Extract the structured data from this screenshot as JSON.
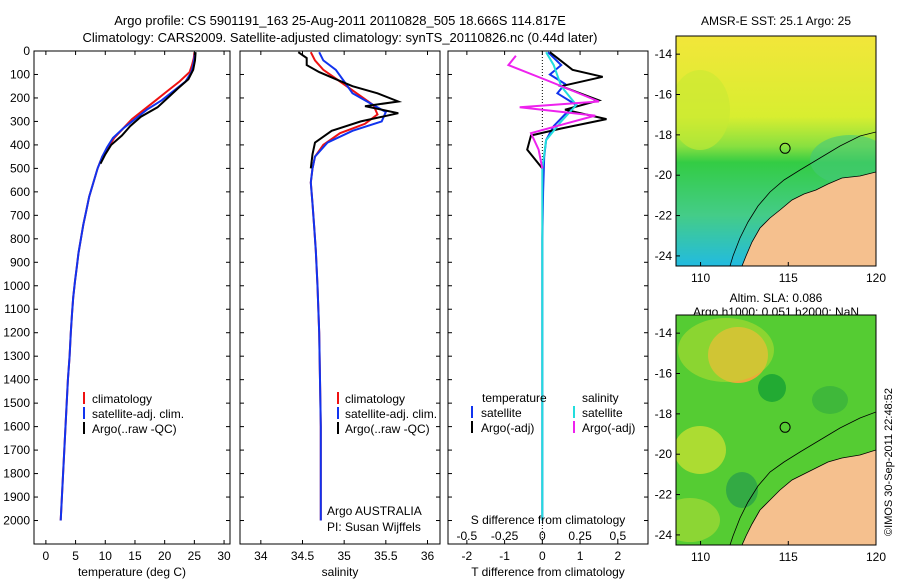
{
  "title_line1": "Argo profile: CS 5901191_163 25-Aug-2011 20110828_505 18.666S 114.817E",
  "title_line2": "Climatology: CARS2009. Satellite-adjusted climatology: synTS_20110826.nc (0.44d later)",
  "depth_ticks": [
    0,
    100,
    200,
    300,
    400,
    500,
    600,
    700,
    800,
    900,
    1000,
    1100,
    1200,
    1300,
    1400,
    1500,
    1600,
    1700,
    1800,
    1900,
    2000
  ],
  "colors": {
    "clim": "#ee1111",
    "sat": "#1133ee",
    "argo": "#000000",
    "cyan": "#22dddd",
    "magenta": "#ee22ee",
    "land": "#f5c08e"
  },
  "chart_data": [
    {
      "type": "line",
      "id": "temperature",
      "xlabel": "temperature (deg C)",
      "xlim": [
        -2,
        31
      ],
      "ylim": [
        2100,
        0
      ],
      "xticks": [
        0,
        5,
        10,
        15,
        20,
        25,
        30
      ],
      "legend": [
        "climatology",
        "satellite-adj. clim.",
        "Argo(..raw -QC)"
      ],
      "series": [
        {
          "name": "climatology",
          "color": "clim",
          "points": [
            [
              25.0,
              5
            ],
            [
              24.9,
              30
            ],
            [
              24.6,
              60
            ],
            [
              24.2,
              90
            ],
            [
              22.5,
              130
            ],
            [
              20.5,
              170
            ],
            [
              18.5,
              210
            ],
            [
              16.5,
              250
            ],
            [
              14.5,
              290
            ],
            [
              13.0,
              330
            ],
            [
              11.5,
              370
            ],
            [
              10.5,
              410
            ],
            [
              9.5,
              450
            ],
            [
              8.7,
              500
            ],
            [
              8.0,
              560
            ],
            [
              7.3,
              620
            ],
            [
              6.8,
              680
            ],
            [
              6.3,
              740
            ],
            [
              5.9,
              800
            ],
            [
              5.5,
              860
            ],
            [
              5.2,
              920
            ],
            [
              4.9,
              980
            ],
            [
              4.6,
              1050
            ],
            [
              4.4,
              1120
            ],
            [
              4.2,
              1200
            ],
            [
              4.0,
              1300
            ],
            [
              3.7,
              1400
            ],
            [
              3.5,
              1500
            ],
            [
              3.3,
              1600
            ],
            [
              3.1,
              1700
            ],
            [
              2.9,
              1800
            ],
            [
              2.7,
              1900
            ],
            [
              2.5,
              2000
            ]
          ]
        },
        {
          "name": "satellite-adj. clim.",
          "color": "sat",
          "points": [
            [
              25.1,
              5
            ],
            [
              25.0,
              30
            ],
            [
              24.8,
              60
            ],
            [
              24.5,
              90
            ],
            [
              23.5,
              130
            ],
            [
              21.5,
              170
            ],
            [
              19.5,
              210
            ],
            [
              17.0,
              250
            ],
            [
              15.0,
              290
            ],
            [
              13.0,
              330
            ],
            [
              11.3,
              370
            ],
            [
              10.3,
              410
            ],
            [
              9.5,
              450
            ],
            [
              8.7,
              500
            ],
            [
              8.0,
              560
            ],
            [
              7.3,
              620
            ],
            [
              6.8,
              680
            ],
            [
              6.3,
              740
            ],
            [
              5.9,
              800
            ],
            [
              5.5,
              860
            ],
            [
              5.2,
              920
            ],
            [
              4.9,
              980
            ],
            [
              4.6,
              1050
            ],
            [
              4.4,
              1120
            ],
            [
              4.2,
              1200
            ],
            [
              4.0,
              1300
            ],
            [
              3.7,
              1400
            ],
            [
              3.5,
              1500
            ],
            [
              3.3,
              1600
            ],
            [
              3.1,
              1700
            ],
            [
              2.9,
              1800
            ],
            [
              2.7,
              1900
            ],
            [
              2.5,
              2000
            ]
          ]
        },
        {
          "name": "Argo(..raw -QC)",
          "color": "argo",
          "points": [
            [
              25.2,
              5
            ],
            [
              25.1,
              40
            ],
            [
              24.8,
              80
            ],
            [
              24.0,
              120
            ],
            [
              22.2,
              160
            ],
            [
              20.5,
              200
            ],
            [
              18.8,
              240
            ],
            [
              16.0,
              280
            ],
            [
              14.2,
              320
            ],
            [
              12.8,
              360
            ],
            [
              11.0,
              400
            ],
            [
              10.0,
              440
            ],
            [
              9.2,
              480
            ]
          ]
        }
      ]
    },
    {
      "type": "line",
      "id": "salinity",
      "xlabel": "salinity",
      "xlim": [
        33.75,
        36.15
      ],
      "ylim": [
        2100,
        0
      ],
      "xticks": [
        34,
        34.5,
        35,
        35.5,
        36
      ],
      "legend": [
        "climatology",
        "satellite-adj. clim.",
        "Argo(..raw -QC)"
      ],
      "annotation": [
        "Argo AUSTRALIA",
        "PI: Susan Wijffels"
      ],
      "series": [
        {
          "name": "climatology",
          "color": "clim",
          "points": [
            [
              34.6,
              5
            ],
            [
              34.65,
              40
            ],
            [
              34.75,
              80
            ],
            [
              34.95,
              130
            ],
            [
              35.15,
              180
            ],
            [
              35.35,
              230
            ],
            [
              35.4,
              270
            ],
            [
              35.25,
              310
            ],
            [
              34.95,
              350
            ],
            [
              34.75,
              400
            ],
            [
              34.65,
              450
            ],
            [
              34.62,
              500
            ],
            [
              34.6,
              560
            ],
            [
              34.62,
              650
            ],
            [
              34.64,
              750
            ],
            [
              34.66,
              850
            ],
            [
              34.68,
              1000
            ],
            [
              34.7,
              1200
            ],
            [
              34.71,
              1400
            ],
            [
              34.72,
              1600
            ],
            [
              34.72,
              1800
            ],
            [
              34.72,
              2000
            ]
          ]
        },
        {
          "name": "satellite-adj. clim.",
          "color": "sat",
          "points": [
            [
              34.7,
              5
            ],
            [
              34.75,
              40
            ],
            [
              34.9,
              80
            ],
            [
              35.0,
              130
            ],
            [
              35.1,
              180
            ],
            [
              35.35,
              230
            ],
            [
              35.5,
              260
            ],
            [
              35.45,
              300
            ],
            [
              35.1,
              340
            ],
            [
              34.8,
              390
            ],
            [
              34.65,
              450
            ],
            [
              34.62,
              500
            ],
            [
              34.6,
              560
            ],
            [
              34.62,
              650
            ],
            [
              34.64,
              750
            ],
            [
              34.66,
              850
            ],
            [
              34.68,
              1000
            ],
            [
              34.7,
              1200
            ],
            [
              34.71,
              1400
            ],
            [
              34.72,
              1600
            ],
            [
              34.72,
              1800
            ],
            [
              34.72,
              2000
            ]
          ]
        },
        {
          "name": "Argo(..raw -QC)",
          "color": "argo",
          "points": [
            [
              34.45,
              5
            ],
            [
              34.55,
              30
            ],
            [
              34.55,
              60
            ],
            [
              34.7,
              90
            ],
            [
              34.9,
              120
            ],
            [
              35.1,
              150
            ],
            [
              35.4,
              180
            ],
            [
              35.65,
              215
            ],
            [
              35.25,
              235
            ],
            [
              35.65,
              265
            ],
            [
              35.2,
              300
            ],
            [
              34.85,
              340
            ],
            [
              34.65,
              390
            ],
            [
              34.62,
              440
            ],
            [
              34.6,
              500
            ]
          ]
        }
      ]
    },
    {
      "type": "line",
      "id": "difference",
      "xlabel": "T difference from climatology",
      "xlabel_top": "S difference from climatology",
      "xlim": [
        -2.5,
        2.8
      ],
      "ylim": [
        2100,
        0
      ],
      "xticks": [
        -2,
        -1,
        0,
        1,
        2
      ],
      "xticks_top": [
        -0.5,
        -0.25,
        0,
        0.25,
        0.5
      ],
      "legend_temperature": [
        "temperature",
        "satellite",
        "Argo(-adj)"
      ],
      "legend_salinity": [
        "salinity",
        "satellite",
        "Argo(-adj)"
      ],
      "series": [
        {
          "name": "temperature satellite",
          "color": "sat",
          "points": [
            [
              0.15,
              5
            ],
            [
              0.5,
              60
            ],
            [
              0.2,
              100
            ],
            [
              0.6,
              140
            ],
            [
              0.4,
              180
            ],
            [
              0.9,
              230
            ],
            [
              0.6,
              270
            ],
            [
              0.3,
              320
            ],
            [
              0.1,
              380
            ],
            [
              0.05,
              450
            ],
            [
              0.02,
              600
            ],
            [
              0.0,
              800
            ],
            [
              0.0,
              2000
            ]
          ]
        },
        {
          "name": "temperature Argo(-adj)",
          "color": "argo",
          "points": [
            [
              0.2,
              5
            ],
            [
              0.8,
              80
            ],
            [
              1.6,
              110
            ],
            [
              0.5,
              150
            ],
            [
              1.5,
              210
            ],
            [
              0.6,
              250
            ],
            [
              1.7,
              290
            ],
            [
              0.5,
              330
            ],
            [
              -0.3,
              360
            ],
            [
              -0.4,
              420
            ],
            [
              0.0,
              500
            ]
          ]
        },
        {
          "name": "salinity satellite",
          "color": "cyan",
          "points": [
            [
              0.1,
              5
            ],
            [
              0.3,
              60
            ],
            [
              0.5,
              150
            ],
            [
              0.9,
              230
            ],
            [
              0.5,
              300
            ],
            [
              0.1,
              380
            ],
            [
              0.0,
              500
            ],
            [
              0.0,
              2000
            ]
          ]
        },
        {
          "name": "salinity Argo(-adj)",
          "color": "magenta",
          "points": [
            [
              -0.7,
              20
            ],
            [
              -0.9,
              60
            ],
            [
              0.2,
              130
            ],
            [
              1.5,
              215
            ],
            [
              -0.6,
              240
            ],
            [
              1.4,
              275
            ],
            [
              0.6,
              310
            ],
            [
              -0.3,
              350
            ],
            [
              -0.1,
              420
            ],
            [
              0.0,
              500
            ]
          ]
        }
      ]
    },
    {
      "type": "heatmap",
      "id": "sst-map",
      "title": "AMSR-E SST: 25.1 Argo: 25",
      "xticks": [
        110,
        115,
        120
      ],
      "yticks": [
        -14,
        -16,
        -18,
        -20,
        -22,
        -24
      ],
      "xlim": [
        108.6,
        120
      ],
      "ylim": [
        -24.5,
        -13.1
      ],
      "argo_position": [
        114.817,
        -18.666
      ]
    },
    {
      "type": "heatmap",
      "id": "sla-map",
      "title": "Altim. SLA: 0.086",
      "subtitle": "Argo h1000: 0.051 h2000: NaN",
      "xticks": [
        110,
        115,
        120
      ],
      "yticks": [
        -14,
        -16,
        -18,
        -20,
        -22,
        -24
      ],
      "xlim": [
        108.6,
        120
      ],
      "ylim": [
        -24.5,
        -13.1
      ],
      "argo_position": [
        114.817,
        -18.666
      ]
    }
  ],
  "timestamp": "©IMOS 30-Sep-2011 22:48:52"
}
